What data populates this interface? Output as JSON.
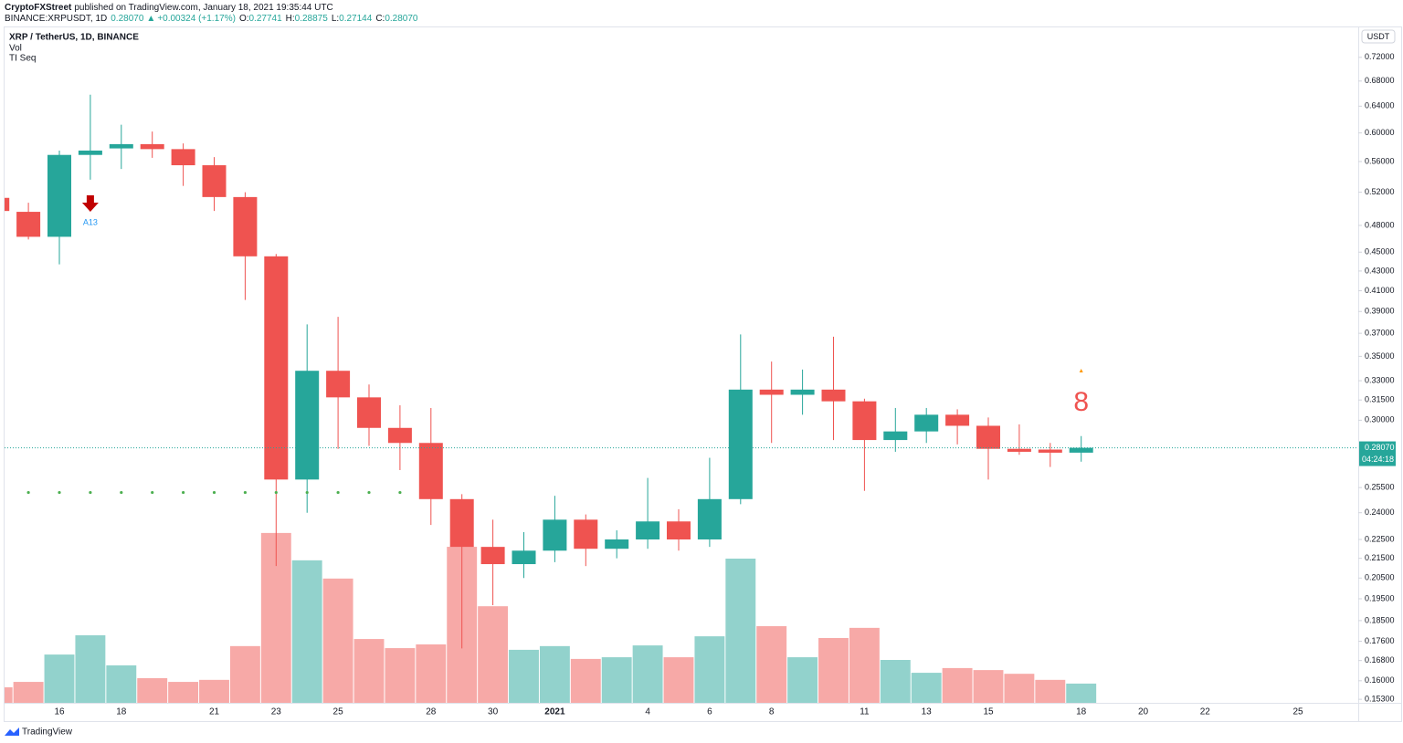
{
  "header": {
    "publisher": "CryptoFXStreet",
    "published": "published on TradingView.com, January 18, 2021 19:35:44 UTC",
    "symbol": "BINANCE:XRPUSDT, 1D",
    "last": "0.28070",
    "change": "+0.00324 (+1.17%)",
    "ohlc": [
      {
        "label": "O:",
        "value": "0.27741"
      },
      {
        "label": "H:",
        "value": "0.28875"
      },
      {
        "label": "L:",
        "value": "0.27144"
      },
      {
        "label": "C:",
        "value": "0.28070"
      }
    ]
  },
  "footer": {
    "logo": "TradingView"
  },
  "chart_data": {
    "type": "candlestick",
    "log_scale": true,
    "grid": false,
    "currency": "USDT",
    "categories": [
      null,
      null,
      "16",
      null,
      "18",
      null,
      null,
      "21",
      null,
      "23",
      null,
      "25",
      null,
      null,
      "28",
      null,
      "30",
      null,
      "2021",
      null,
      null,
      "4",
      null,
      "6",
      null,
      "8",
      null,
      null,
      "11",
      null,
      "13",
      null,
      "15",
      null,
      null,
      "18",
      null,
      "20",
      null,
      "22",
      null,
      null,
      "25",
      null
    ],
    "ylim": [
      0.1517,
      0.774
    ],
    "yticks": [
      {
        "value": 0.72,
        "label": "0.72000"
      },
      {
        "value": 0.68,
        "label": "0.68000"
      },
      {
        "value": 0.64,
        "label": "0.64000"
      },
      {
        "value": 0.6,
        "label": "0.60000"
      },
      {
        "value": 0.56,
        "label": "0.56000"
      },
      {
        "value": 0.52,
        "label": "0.52000"
      },
      {
        "value": 0.48,
        "label": "0.48000"
      },
      {
        "value": 0.45,
        "label": "0.45000"
      },
      {
        "value": 0.43,
        "label": "0.43000"
      },
      {
        "value": 0.41,
        "label": "0.41000"
      },
      {
        "value": 0.39,
        "label": "0.39000"
      },
      {
        "value": 0.37,
        "label": "0.37000"
      },
      {
        "value": 0.35,
        "label": "0.35000"
      },
      {
        "value": 0.33,
        "label": "0.33000"
      },
      {
        "value": 0.315,
        "label": "0.31500"
      },
      {
        "value": 0.3,
        "label": "0.30000"
      },
      {
        "value": 0.255,
        "label": "0.25500"
      },
      {
        "value": 0.24,
        "label": "0.24000"
      },
      {
        "value": 0.225,
        "label": "0.22500"
      },
      {
        "value": 0.215,
        "label": "0.21500"
      },
      {
        "value": 0.205,
        "label": "0.20500"
      },
      {
        "value": 0.195,
        "label": "0.19500"
      },
      {
        "value": 0.185,
        "label": "0.18500"
      },
      {
        "value": 0.176,
        "label": "0.17600"
      },
      {
        "value": 0.168,
        "label": "0.16800"
      },
      {
        "value": 0.16,
        "label": "0.16000"
      },
      {
        "value": 0.153,
        "label": "0.15300"
      }
    ],
    "series": [
      {
        "name": "XRP / TetherUS, 1D, BINANCE",
        "up_color": "#26a69a",
        "down_color": "#ef5350",
        "open": [
          0.513,
          0.496,
          0.467,
          0.569,
          0.578,
          0.584,
          0.577,
          0.555,
          0.514,
          0.4455,
          0.26,
          0.338,
          0.317,
          0.2945,
          0.284,
          0.248,
          0.221,
          0.212,
          0.219,
          0.236,
          0.22,
          0.225,
          0.235,
          0.225,
          0.248,
          0.323,
          0.319,
          0.323,
          0.314,
          0.286,
          0.292,
          0.304,
          0.296,
          0.28,
          0.2795,
          0.27741,
          null,
          null,
          null,
          null,
          null,
          null,
          null,
          null
        ],
        "high": [
          0.518,
          0.507,
          0.575,
          0.658,
          0.612,
          0.602,
          0.585,
          0.566,
          0.52,
          0.448,
          0.378,
          0.385,
          0.327,
          0.311,
          0.309,
          0.251,
          0.236,
          0.229,
          0.25,
          0.239,
          0.23,
          0.261,
          0.242,
          0.274,
          0.369,
          0.3456,
          0.339,
          0.367,
          0.316,
          0.309,
          0.309,
          0.308,
          0.302,
          0.297,
          0.284,
          0.28875,
          null,
          null,
          null,
          null,
          null,
          null,
          null,
          null
        ],
        "low": [
          0.49,
          0.464,
          0.437,
          0.536,
          0.55,
          0.565,
          0.528,
          0.497,
          0.401,
          0.211,
          0.24,
          0.28,
          0.282,
          0.266,
          0.233,
          0.173,
          0.192,
          0.205,
          0.213,
          0.211,
          0.215,
          0.22,
          0.219,
          0.221,
          0.245,
          0.284,
          0.304,
          0.286,
          0.253,
          0.278,
          0.284,
          0.283,
          0.26,
          0.276,
          0.268,
          0.27144,
          null,
          null,
          null,
          null,
          null,
          null,
          null,
          null
        ],
        "close": [
          0.497,
          0.467,
          0.569,
          0.575,
          0.584,
          0.577,
          0.555,
          0.514,
          0.4455,
          0.26,
          0.338,
          0.317,
          0.2945,
          0.284,
          0.248,
          0.221,
          0.212,
          0.219,
          0.236,
          0.22,
          0.225,
          0.235,
          0.225,
          0.248,
          0.323,
          0.319,
          0.323,
          0.314,
          0.286,
          0.292,
          0.304,
          0.296,
          0.28,
          0.278,
          0.2774,
          0.2807,
          null,
          null,
          null,
          null,
          null,
          null,
          null,
          null
        ]
      }
    ],
    "volume": {
      "name": "Vol",
      "vlim": [
        0,
        100
      ],
      "values": [
        4.6,
        6.2,
        14.3,
        20,
        11.1,
        7.3,
        6.2,
        6.8,
        16.8,
        50.3,
        42.2,
        36.8,
        18.9,
        16.2,
        17.3,
        46.2,
        28.6,
        15.7,
        16.8,
        13,
        13.5,
        17,
        13.5,
        19.7,
        42.7,
        22.7,
        13.5,
        19.2,
        22.2,
        12.7,
        8.9,
        10.3,
        9.7,
        8.6,
        6.8,
        5.7,
        null,
        null,
        null,
        null,
        null,
        null,
        null,
        null
      ]
    },
    "td_seq": {
      "name": "TI Seq",
      "color": "#4caf50",
      "values": [
        null,
        0.252,
        0.252,
        0.252,
        0.252,
        0.252,
        0.252,
        0.252,
        0.252,
        0.252,
        0.252,
        0.252,
        0.252,
        0.252,
        null,
        null,
        null,
        null,
        null,
        null,
        null,
        null,
        null,
        null,
        null,
        null,
        null,
        null,
        null,
        null,
        null,
        null,
        null,
        null,
        null,
        null,
        null,
        null,
        null,
        null,
        null,
        null,
        null,
        null
      ],
      "sell_signal": "A13",
      "count": "8"
    },
    "last_price": {
      "value": 0.2807,
      "label": "0.28070"
    },
    "countdown": "04:24:18"
  }
}
